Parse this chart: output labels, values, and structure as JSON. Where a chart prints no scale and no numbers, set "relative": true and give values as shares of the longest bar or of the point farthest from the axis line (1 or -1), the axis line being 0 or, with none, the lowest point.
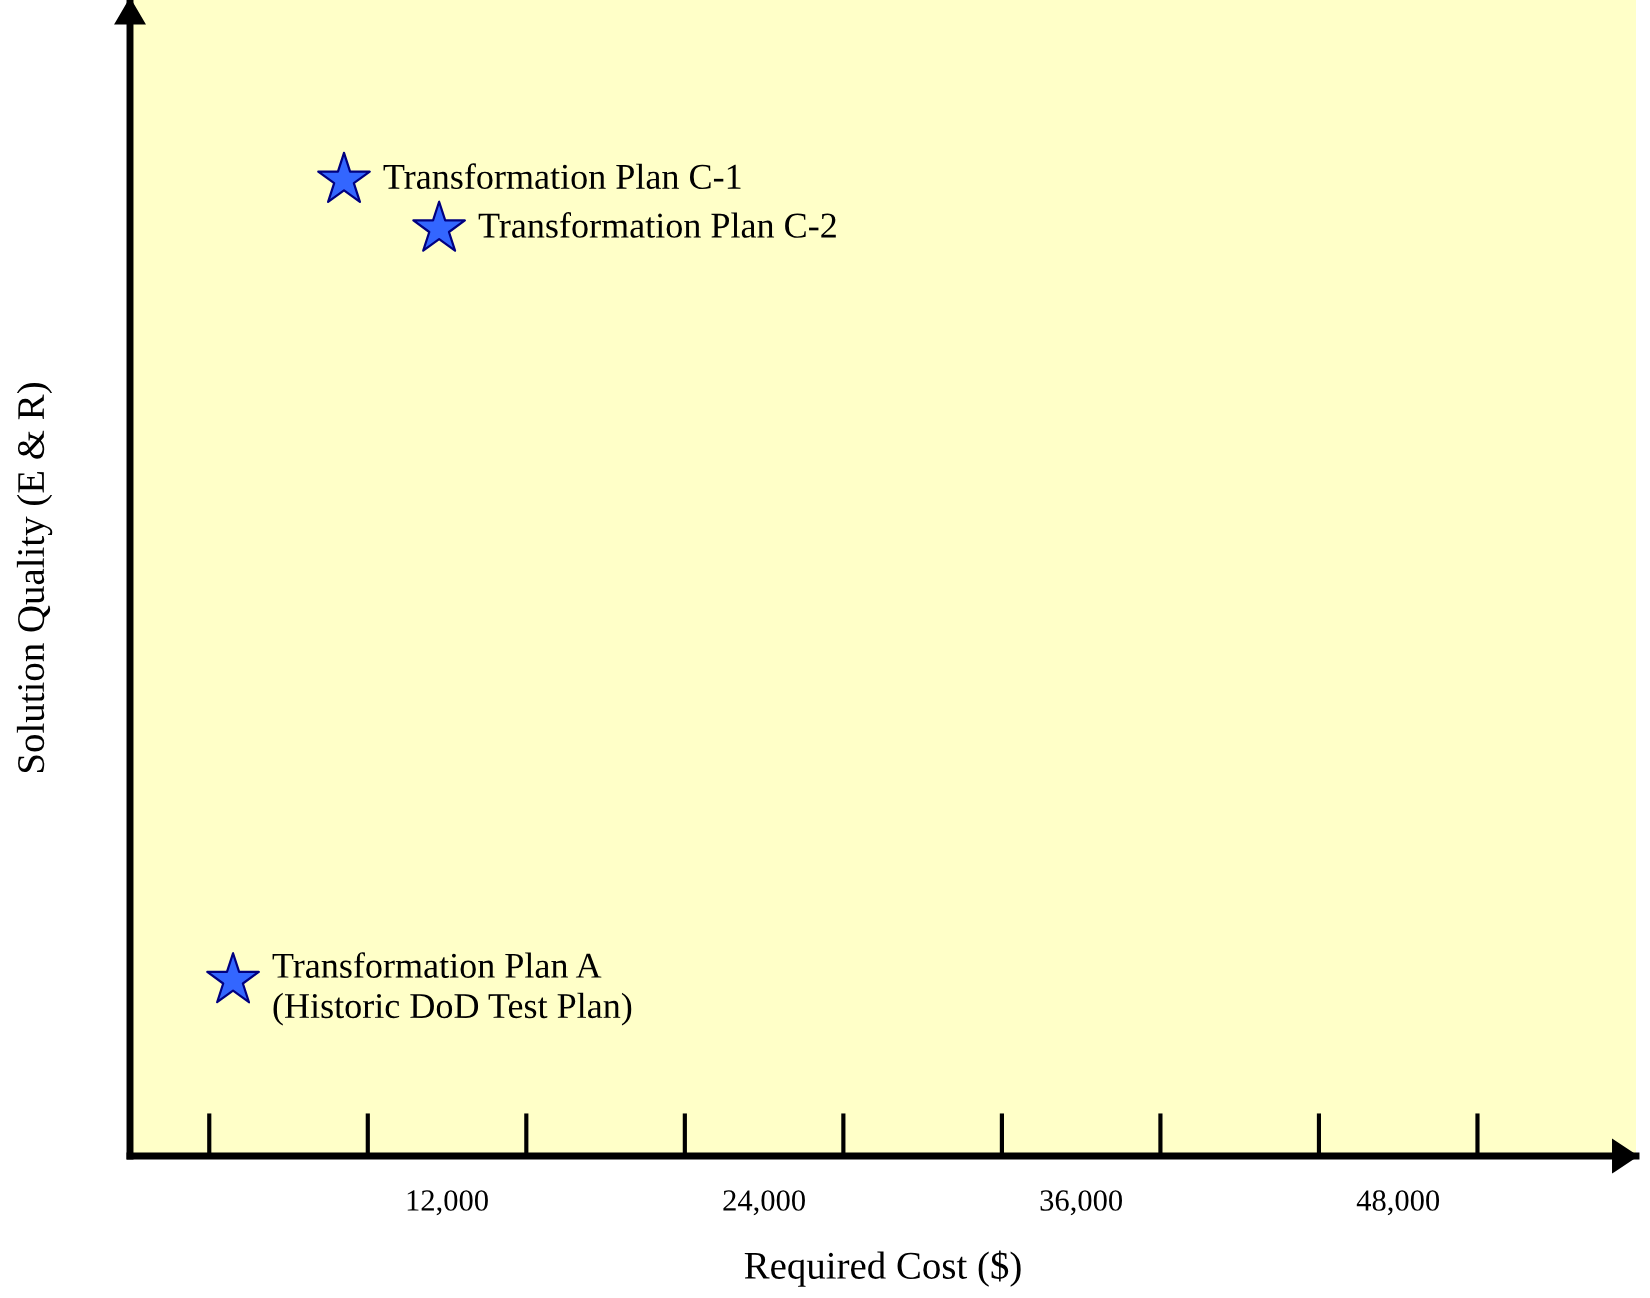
{
  "chart_data": {
    "type": "scatter",
    "relative": true,
    "xlabel": "Required Cost ($)",
    "ylabel": "Solution Quality (E & R)",
    "x": [
      8100,
      11700,
      3900
    ],
    "values": [
      1,
      0.95,
      0.18
    ],
    "color": "#3366ff",
    "marker": "star",
    "xlim": [
      0,
      57000
    ],
    "xticks": [
      {
        "value": 12000,
        "label": "12,000"
      },
      {
        "value": 24000,
        "label": "24,000"
      },
      {
        "value": 36000,
        "label": "36,000"
      },
      {
        "value": 48000,
        "label": "48,000"
      }
    ],
    "annotations": [
      {
        "text": "Transformation Plan C-1",
        "x": 8100,
        "y": 1
      },
      {
        "text": "Transformation Plan C-2",
        "x": 11700,
        "y": 0.95
      },
      {
        "text": "Transformation Plan A\n(Historic DoD Test Plan)",
        "x": 3900,
        "y": 0.18
      }
    ]
  }
}
